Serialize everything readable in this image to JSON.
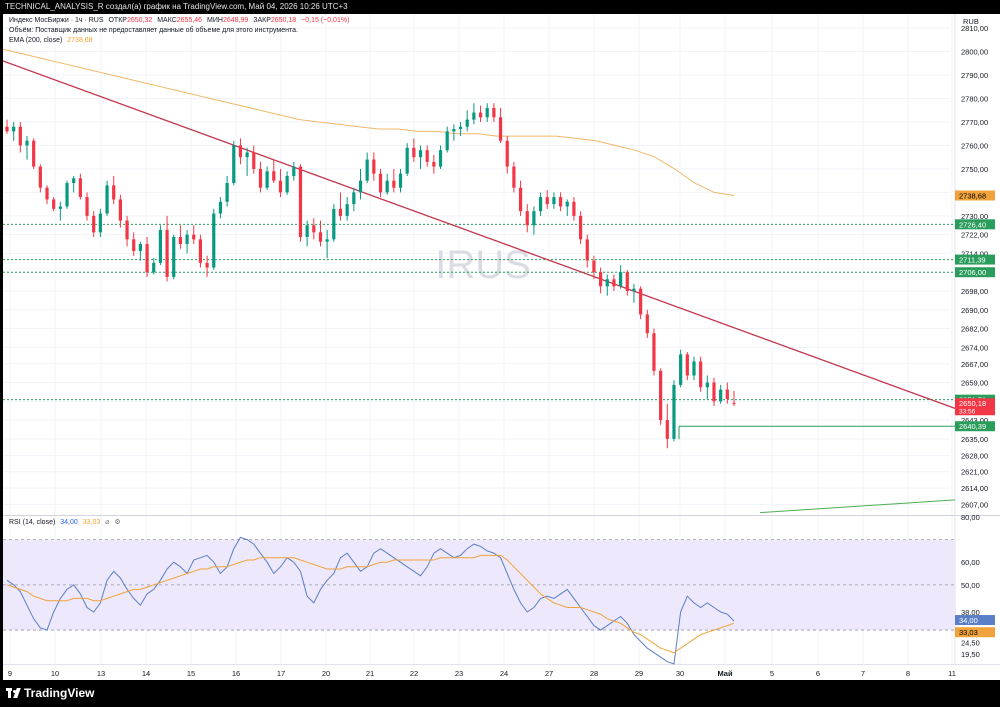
{
  "header": {
    "caption": "TECHNICAL_ANALYSIS_R создал(а) график на TradingView.com, Май 04, 2026 10:26 UTC+3"
  },
  "legend": {
    "instrument": "Индекс МосБиржи · 1ч · RUS",
    "open_label": "ОТКР",
    "open": "2650,32",
    "high_label": "МАКС",
    "high": "2655,46",
    "low_label": "МИН",
    "low": "2648,99",
    "close_label": "ЗАКР",
    "close": "2650,18",
    "change": "−0,15 (−0,01%)",
    "volume_note": "Объём: Поставщик данных не предоставляет данные об объеме для этого инструмента.",
    "ema_label": "EMA (200, close)",
    "ema_value": "2738,68",
    "rsi_label": "RSI (14, close)",
    "rsi_value": "34,00",
    "rsi_ma_value": "33,03",
    "icons": [
      "eye-off-icon",
      "settings-icon"
    ]
  },
  "watermark": "IRUS",
  "currency": "RUB",
  "colors": {
    "up": "#089981",
    "down": "#f23645",
    "ema": "#f0b768",
    "trendline": "#c2344a",
    "level": "#2a9d5c",
    "support": "#2a9d5c",
    "rsi": "#5b7fc7",
    "rsi_ma": "#f0a33a",
    "rsi_band": "#ede8fb"
  },
  "footer": {
    "brand": "TradingView"
  },
  "chart_data": [
    {
      "type": "candlestick",
      "title": "Индекс МосБиржи · 1ч · RUS",
      "ylim": [
        2603,
        2816
      ],
      "y_ticks": [
        "2810,00",
        "2800,00",
        "2790,00",
        "2780,00",
        "2770,00",
        "2760,00",
        "2750,00",
        "2740,00",
        "2730,00",
        "2722,00",
        "2714,00",
        "2706,00",
        "2698,00",
        "2690,00",
        "2682,00",
        "2674,00",
        "2667,00",
        "2659,00",
        "2651,00",
        "2643,00",
        "2635,00",
        "2628,00",
        "2621,00",
        "2614,00",
        "2607,00"
      ],
      "x_ticks": [
        "9",
        "10",
        "13",
        "14",
        "15",
        "16",
        "17",
        "20",
        "21",
        "22",
        "23",
        "24",
        "27",
        "28",
        "29",
        "30",
        "Май",
        "5",
        "6",
        "7",
        "8",
        "11"
      ],
      "ohlc": [
        [
          2768,
          2771,
          2765,
          2766
        ],
        [
          2766,
          2770,
          2762,
          2768
        ],
        [
          2768,
          2770,
          2757,
          2760
        ],
        [
          2760,
          2764,
          2754,
          2762
        ],
        [
          2762,
          2763,
          2750,
          2751
        ],
        [
          2751,
          2752,
          2740,
          2742
        ],
        [
          2742,
          2743,
          2735,
          2737
        ],
        [
          2737,
          2738,
          2732,
          2733
        ],
        [
          2733,
          2736,
          2728,
          2734
        ],
        [
          2734,
          2745,
          2733,
          2744
        ],
        [
          2744,
          2747,
          2740,
          2746
        ],
        [
          2746,
          2748,
          2737,
          2738
        ],
        [
          2738,
          2740,
          2728,
          2730
        ],
        [
          2730,
          2732,
          2721,
          2723
        ],
        [
          2723,
          2733,
          2721,
          2731
        ],
        [
          2731,
          2745,
          2730,
          2743
        ],
        [
          2743,
          2747,
          2735,
          2737
        ],
        [
          2737,
          2739,
          2725,
          2728
        ],
        [
          2728,
          2730,
          2717,
          2720
        ],
        [
          2720,
          2723,
          2713,
          2715
        ],
        [
          2715,
          2719,
          2711,
          2718
        ],
        [
          2718,
          2721,
          2704,
          2706
        ],
        [
          2706,
          2712,
          2705,
          2710
        ],
        [
          2710,
          2726,
          2709,
          2724
        ],
        [
          2724,
          2730,
          2702,
          2704
        ],
        [
          2704,
          2722,
          2703,
          2721
        ],
        [
          2721,
          2726,
          2716,
          2718
        ],
        [
          2718,
          2724,
          2714,
          2722
        ],
        [
          2722,
          2726,
          2718,
          2720
        ],
        [
          2720,
          2722,
          2708,
          2710
        ],
        [
          2710,
          2713,
          2704,
          2708
        ],
        [
          2708,
          2733,
          2707,
          2731
        ],
        [
          2731,
          2738,
          2729,
          2736
        ],
        [
          2736,
          2747,
          2734,
          2744
        ],
        [
          2744,
          2762,
          2743,
          2760
        ],
        [
          2760,
          2763,
          2752,
          2755
        ],
        [
          2755,
          2759,
          2747,
          2757
        ],
        [
          2757,
          2760,
          2748,
          2750
        ],
        [
          2750,
          2753,
          2740,
          2742
        ],
        [
          2742,
          2751,
          2741,
          2749
        ],
        [
          2749,
          2754,
          2744,
          2745
        ],
        [
          2745,
          2750,
          2738,
          2740
        ],
        [
          2740,
          2749,
          2739,
          2747
        ],
        [
          2747,
          2753,
          2745,
          2751
        ],
        [
          2751,
          2752,
          2719,
          2721
        ],
        [
          2721,
          2728,
          2717,
          2726
        ],
        [
          2726,
          2729,
          2720,
          2723
        ],
        [
          2723,
          2728,
          2717,
          2719
        ],
        [
          2719,
          2724,
          2712,
          2720
        ],
        [
          2720,
          2735,
          2719,
          2733
        ],
        [
          2733,
          2740,
          2728,
          2730
        ],
        [
          2730,
          2738,
          2728,
          2735
        ],
        [
          2735,
          2742,
          2732,
          2740
        ],
        [
          2740,
          2750,
          2737,
          2745
        ],
        [
          2745,
          2757,
          2744,
          2754
        ],
        [
          2754,
          2757,
          2745,
          2748
        ],
        [
          2748,
          2750,
          2738,
          2740
        ],
        [
          2740,
          2748,
          2739,
          2745
        ],
        [
          2745,
          2750,
          2740,
          2742
        ],
        [
          2742,
          2750,
          2740,
          2748
        ],
        [
          2748,
          2761,
          2747,
          2759
        ],
        [
          2759,
          2763,
          2753,
          2755
        ],
        [
          2755,
          2760,
          2750,
          2758
        ],
        [
          2758,
          2760,
          2751,
          2753
        ],
        [
          2753,
          2756,
          2748,
          2751
        ],
        [
          2751,
          2760,
          2750,
          2758
        ],
        [
          2758,
          2768,
          2757,
          2766
        ],
        [
          2766,
          2769,
          2762,
          2767
        ],
        [
          2767,
          2770,
          2764,
          2768
        ],
        [
          2768,
          2775,
          2766,
          2771
        ],
        [
          2771,
          2778,
          2769,
          2774
        ],
        [
          2774,
          2777,
          2770,
          2772
        ],
        [
          2772,
          2778,
          2770,
          2776
        ],
        [
          2776,
          2778,
          2770,
          2772
        ],
        [
          2772,
          2776,
          2761,
          2762
        ],
        [
          2762,
          2764,
          2748,
          2751
        ],
        [
          2751,
          2753,
          2740,
          2742
        ],
        [
          2742,
          2745,
          2730,
          2732
        ],
        [
          2732,
          2735,
          2723,
          2726
        ],
        [
          2726,
          2734,
          2722,
          2732
        ],
        [
          2732,
          2740,
          2730,
          2738
        ],
        [
          2738,
          2741,
          2733,
          2735
        ],
        [
          2735,
          2740,
          2733,
          2738
        ],
        [
          2738,
          2740,
          2732,
          2734
        ],
        [
          2734,
          2737,
          2730,
          2736
        ],
        [
          2736,
          2738,
          2728,
          2730
        ],
        [
          2730,
          2732,
          2718,
          2720
        ],
        [
          2720,
          2722,
          2708,
          2711
        ],
        [
          2711,
          2713,
          2703,
          2706
        ],
        [
          2706,
          2708,
          2697,
          2700
        ],
        [
          2700,
          2705,
          2696,
          2703
        ],
        [
          2703,
          2705,
          2698,
          2700
        ],
        [
          2700,
          2709,
          2699,
          2706
        ],
        [
          2706,
          2707,
          2696,
          2698
        ],
        [
          2698,
          2701,
          2693,
          2699
        ],
        [
          2699,
          2700,
          2686,
          2688
        ],
        [
          2688,
          2690,
          2678,
          2680
        ],
        [
          2680,
          2682,
          2662,
          2664
        ],
        [
          2664,
          2665,
          2641,
          2643
        ],
        [
          2643,
          2650,
          2631,
          2635
        ],
        [
          2635,
          2660,
          2634,
          2658
        ],
        [
          2658,
          2673,
          2657,
          2671
        ],
        [
          2671,
          2672,
          2660,
          2662
        ],
        [
          2662,
          2670,
          2660,
          2668
        ],
        [
          2668,
          2670,
          2655,
          2657
        ],
        [
          2657,
          2662,
          2652,
          2659
        ],
        [
          2659,
          2661,
          2649,
          2651
        ],
        [
          2651,
          2658,
          2650,
          2656
        ],
        [
          2656,
          2659,
          2650,
          2652
        ],
        [
          2650.32,
          2655.46,
          2648.99,
          2650.18
        ]
      ],
      "ema_200": [
        2801,
        2799,
        2797,
        2795,
        2793,
        2791,
        2789,
        2787,
        2785,
        2783,
        2781,
        2779,
        2777,
        2775,
        2773,
        2771,
        2770,
        2769,
        2768,
        2767,
        2767,
        2766,
        2766,
        2765,
        2765,
        2764,
        2764,
        2764,
        2764,
        2763,
        2762,
        2760,
        2758,
        2755,
        2750,
        2744,
        2740,
        2738.68
      ],
      "price_labels": {
        "ema": "2738,68",
        "level_1": "2726,40",
        "level_2": "2711,39",
        "level_3": "2706,00",
        "level_4": "2651,71",
        "last": "2650,18",
        "countdown": "33:56",
        "support": "2640,39"
      },
      "levels": [
        2726.4,
        2711.39,
        2706.0,
        2651.71
      ],
      "support_level": 2640.39,
      "trendline": {
        "from": 2796,
        "to": 2648
      },
      "rising_line": {
        "from": 2603.6,
        "to": 2609
      },
      "grid": true
    },
    {
      "type": "line",
      "title": "RSI (14, close)",
      "ylim": [
        15,
        80
      ],
      "y_ticks": [
        "80,00",
        "60,00",
        "50,00",
        "38,00",
        "24,50",
        "19,50"
      ],
      "band": [
        30,
        70
      ],
      "series": [
        {
          "name": "RSI",
          "values": [
            52,
            50,
            47,
            41,
            35,
            31,
            30,
            38,
            44,
            48,
            50,
            46,
            40,
            38,
            42,
            52,
            56,
            53,
            48,
            44,
            41,
            46,
            48,
            52,
            57,
            60,
            58,
            55,
            61,
            62,
            63,
            60,
            55,
            58,
            66,
            71,
            70,
            68,
            64,
            60,
            55,
            58,
            62,
            60,
            56,
            45,
            42,
            48,
            52,
            55,
            62,
            64,
            60,
            56,
            58,
            64,
            66,
            64,
            62,
            60,
            58,
            56,
            54,
            58,
            64,
            66,
            64,
            62,
            63,
            66,
            68,
            67,
            65,
            64,
            62,
            55,
            48,
            42,
            38,
            40,
            44,
            45,
            44,
            46,
            48,
            44,
            40,
            36,
            32,
            30,
            32,
            34,
            36,
            33,
            28,
            25,
            22,
            20,
            18,
            16,
            15,
            38,
            45,
            42,
            40,
            42,
            40,
            38,
            37,
            34
          ]
        },
        {
          "name": "MA",
          "values": [
            50,
            49,
            48,
            47,
            45,
            44,
            43,
            43,
            43,
            43,
            44,
            44,
            44,
            43,
            43,
            44,
            45,
            46,
            47,
            48,
            48,
            49,
            50,
            51,
            52,
            53,
            54,
            55,
            56,
            57,
            57,
            58,
            58,
            58,
            59,
            60,
            61,
            61,
            62,
            62,
            62,
            62,
            62,
            62,
            61,
            60,
            59,
            58,
            57,
            57,
            57,
            58,
            58,
            58,
            58,
            59,
            60,
            60,
            61,
            61,
            61,
            61,
            61,
            61,
            61,
            62,
            62,
            62,
            62,
            62,
            62,
            63,
            63,
            63,
            63,
            61,
            58,
            55,
            52,
            49,
            46,
            44,
            42,
            41,
            40,
            40,
            40,
            39,
            38,
            37,
            35,
            34,
            33,
            31,
            29,
            28,
            26,
            24,
            22,
            21,
            20,
            22,
            24,
            26,
            28,
            29,
            30,
            31,
            32,
            33.03
          ]
        }
      ],
      "values_shown": [
        "34,00",
        "33,03"
      ]
    }
  ]
}
